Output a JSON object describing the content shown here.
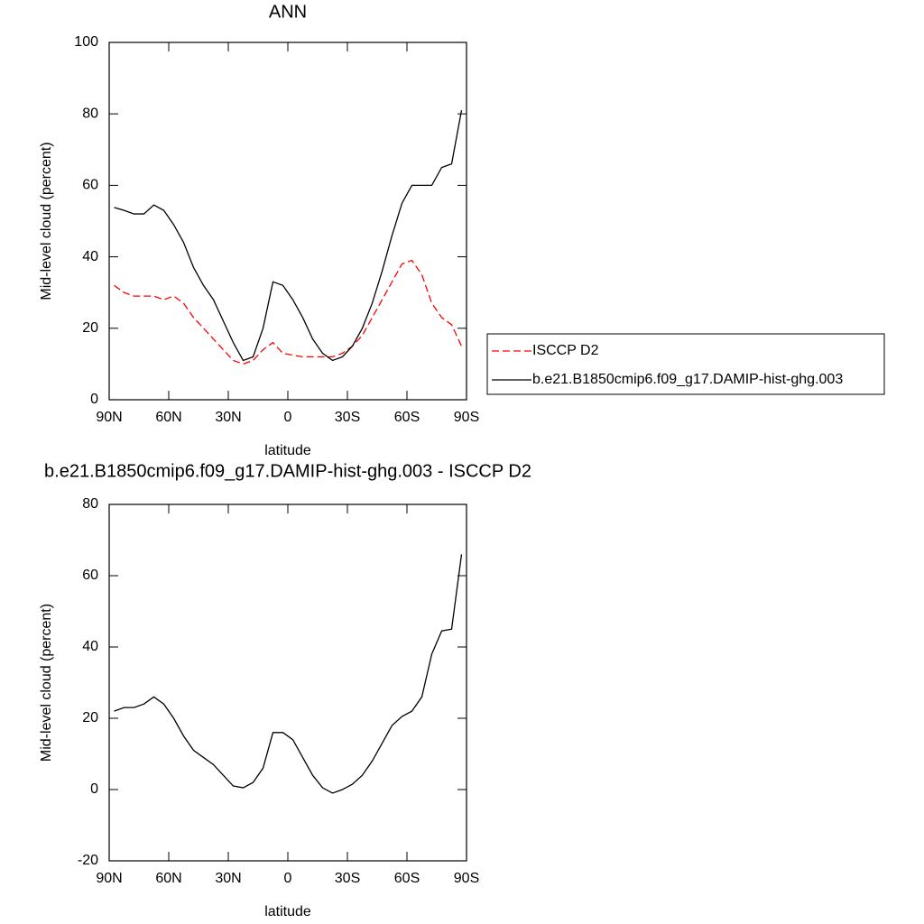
{
  "chart_data": [
    {
      "type": "line",
      "title": "ANN",
      "x_label": "latitude",
      "y_label": "Mid-level cloud (percent)",
      "x": [
        87.5,
        82.5,
        77.5,
        72.5,
        67.5,
        62.5,
        57.5,
        52.5,
        47.5,
        42.5,
        37.5,
        32.5,
        27.5,
        22.5,
        17.5,
        12.5,
        7.5,
        2.5,
        -2.5,
        -7.5,
        -12.5,
        -17.5,
        -22.5,
        -27.5,
        -32.5,
        -37.5,
        -42.5,
        -47.5,
        -52.5,
        -57.5,
        -62.5,
        -67.5,
        -72.5,
        -77.5,
        -82.5,
        -87.5
      ],
      "series": [
        {
          "name": "ISCCP D2",
          "color": "#ff0000",
          "dashed": true,
          "values": [
            32,
            30,
            29,
            29,
            29,
            28,
            29,
            27,
            23,
            20,
            17,
            14,
            11,
            10,
            11,
            14,
            16,
            13,
            12.5,
            12,
            12,
            12,
            12,
            13,
            15,
            18,
            23,
            28,
            33,
            38,
            39,
            35,
            27,
            23,
            21,
            15
          ]
        },
        {
          "name": "b.e21.B1850cmip6.f09_g17.DAMIP-hist-ghg.003",
          "color": "#000000",
          "dashed": false,
          "values": [
            53.8,
            53,
            52,
            52,
            54.5,
            53,
            49,
            44,
            37,
            32,
            28,
            22,
            16,
            11,
            12,
            20,
            33,
            32,
            28,
            23,
            17,
            13,
            11,
            12,
            15,
            20,
            27,
            36,
            46,
            55,
            60,
            60,
            60,
            65,
            66,
            81
          ]
        }
      ],
      "xlim": [
        90,
        -90
      ],
      "xticks": [
        {
          "value": 90,
          "label": "90N"
        },
        {
          "value": 60,
          "label": "60N"
        },
        {
          "value": 30,
          "label": "30N"
        },
        0,
        {
          "value": -30,
          "label": "30S"
        },
        {
          "value": -60,
          "label": "60S"
        },
        {
          "value": -90,
          "label": "90S"
        }
      ],
      "ylim": [
        0,
        100
      ],
      "yticks": [
        0,
        20,
        40,
        60,
        80,
        100
      ],
      "legend": "right"
    },
    {
      "type": "line",
      "title": "b.e21.B1850cmip6.f09_g17.DAMIP-hist-ghg.003 - ISCCP D2",
      "x_label": "latitude",
      "y_label": "Mid-level cloud (percent)",
      "x": [
        87.5,
        82.5,
        77.5,
        72.5,
        67.5,
        62.5,
        57.5,
        52.5,
        47.5,
        42.5,
        37.5,
        32.5,
        27.5,
        22.5,
        17.5,
        12.5,
        7.5,
        2.5,
        -2.5,
        -7.5,
        -12.5,
        -17.5,
        -22.5,
        -27.5,
        -32.5,
        -37.5,
        -42.5,
        -47.5,
        -52.5,
        -57.5,
        -62.5,
        -67.5,
        -72.5,
        -77.5,
        -82.5,
        -87.5
      ],
      "series": [
        {
          "color": "#000000",
          "dashed": false,
          "values": [
            22,
            23,
            23,
            24,
            26,
            24,
            20,
            15,
            11,
            9,
            7,
            4,
            1,
            0.5,
            2,
            6,
            16,
            16,
            14,
            9,
            4,
            0.5,
            -1,
            0,
            1.5,
            4,
            8,
            13,
            18,
            20.5,
            22,
            26,
            38,
            44.5,
            45,
            66
          ]
        }
      ],
      "xlim": [
        90,
        -90
      ],
      "xticks": [
        {
          "value": 90,
          "label": "90N"
        },
        {
          "value": 60,
          "label": "60N"
        },
        {
          "value": 30,
          "label": "30N"
        },
        0,
        {
          "value": -30,
          "label": "30S"
        },
        {
          "value": -60,
          "label": "60S"
        },
        {
          "value": -90,
          "label": "90S"
        }
      ],
      "ylim": [
        -20,
        80
      ],
      "yticks": [
        -20,
        0,
        20,
        40,
        60,
        80
      ]
    }
  ]
}
